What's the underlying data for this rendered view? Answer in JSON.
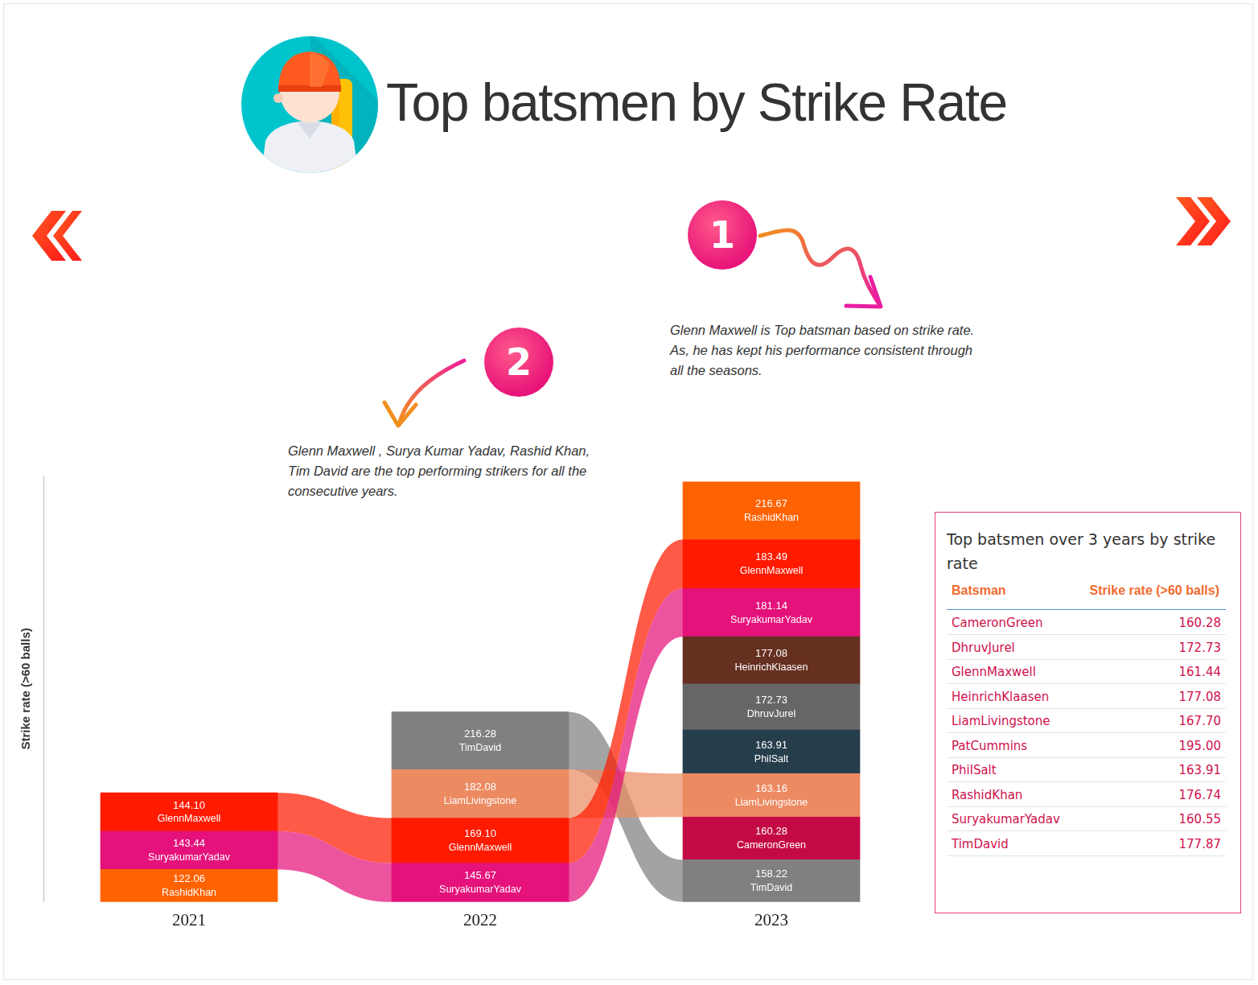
{
  "chart_data": {
    "type": "bar",
    "title": "Top batsmen by Strike Rate",
    "y_label": "Strike rate (>60 balls)",
    "stacked": true,
    "data_labels": true,
    "tick_labels": "x",
    "grid": false,
    "categories": [
      "2021",
      "2022",
      "2023"
    ],
    "ylim": [
      0,
      1600
    ],
    "stacks": [
      [
        {
          "name": "GlennMaxwell",
          "value": 144.1,
          "value_label": "144.10",
          "color": "#ff1a00"
        },
        {
          "name": "SuryakumarYadav",
          "value": 143.44,
          "value_label": "143.44",
          "color": "#e4127a"
        },
        {
          "name": "RashidKhan",
          "value": 122.06,
          "value_label": "122.06",
          "color": "#ff6200"
        }
      ],
      [
        {
          "name": "TimDavid",
          "value": 216.28,
          "value_label": "216.28",
          "color": "#808080"
        },
        {
          "name": "LiamLivingstone",
          "value": 182.08,
          "value_label": "182.08",
          "color": "#ec8a62"
        },
        {
          "name": "GlennMaxwell",
          "value": 169.1,
          "value_label": "169.10",
          "color": "#ff1a00"
        },
        {
          "name": "SuryakumarYadav",
          "value": 145.67,
          "value_label": "145.67",
          "color": "#e4127a"
        }
      ],
      [
        {
          "name": "RashidKhan",
          "value": 216.67,
          "value_label": "216.67",
          "color": "#ff6200"
        },
        {
          "name": "GlennMaxwell",
          "value": 183.49,
          "value_label": "183.49",
          "color": "#ff1a00"
        },
        {
          "name": "SuryakumarYadav",
          "value": 181.14,
          "value_label": "181.14",
          "color": "#e4127a"
        },
        {
          "name": "HeinrichKlaasen",
          "value": 177.08,
          "value_label": "177.08",
          "color": "#663020"
        },
        {
          "name": "DhruvJurel",
          "value": 172.73,
          "value_label": "172.73",
          "color": "#666666"
        },
        {
          "name": "PhilSalt",
          "value": 163.91,
          "value_label": "163.91",
          "color": "#263d4c"
        },
        {
          "name": "LiamLivingstone",
          "value": 163.16,
          "value_label": "163.16",
          "color": "#ec8a62"
        },
        {
          "name": "CameronGreen",
          "value": 160.28,
          "value_label": "160.28",
          "color": "#c40a44"
        },
        {
          "name": "TimDavid",
          "value": 158.22,
          "value_label": "158.22",
          "color": "#808080"
        }
      ]
    ]
  },
  "annotations": [
    {
      "marker": "1",
      "text": "Glenn Maxwell is Top batsman based on strike rate. As, he has kept his performance consistent through all the seasons."
    },
    {
      "marker": "2",
      "text": "Glenn Maxwell , Surya Kumar Yadav, Rashid Khan, Tim David are the top performing strikers for all the consecutive years."
    }
  ],
  "table": {
    "title": "Top batsmen over 3 years by strike rate",
    "columns": [
      "Batsman",
      "Strike rate (>60 balls)"
    ],
    "rows": [
      [
        "CameronGreen",
        "160.28"
      ],
      [
        "DhruvJurel",
        "172.73"
      ],
      [
        "GlennMaxwell",
        "161.44"
      ],
      [
        "HeinrichKlaasen",
        "177.08"
      ],
      [
        "LiamLivingstone",
        "167.70"
      ],
      [
        "PatCummins",
        "195.00"
      ],
      [
        "PhilSalt",
        "163.91"
      ],
      [
        "RashidKhan",
        "176.74"
      ],
      [
        "SuryakumarYadav",
        "160.55"
      ],
      [
        "TimDavid",
        "177.87"
      ]
    ]
  }
}
